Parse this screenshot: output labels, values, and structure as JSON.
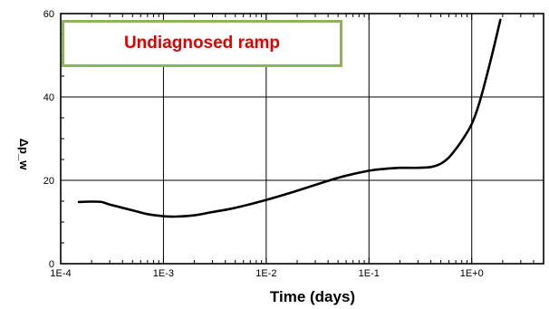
{
  "chart_data": {
    "type": "line",
    "title": "",
    "xlabel": "Time (days)",
    "ylabel": "Δp_w",
    "xscale": "log",
    "xlim": [
      0.0001,
      5
    ],
    "ylim": [
      0,
      60
    ],
    "xticks": [
      0.0001,
      0.001,
      0.01,
      0.1,
      1
    ],
    "xtick_labels": [
      "1E-4",
      "1E-3",
      "1E-2",
      "1E-1",
      "1E+0"
    ],
    "yticks": [
      0,
      20,
      40,
      60
    ],
    "ytick_labels": [
      "0",
      "20",
      "40",
      "60"
    ],
    "grid": true,
    "annotation": "Undiagnosed ramp",
    "series": [
      {
        "color": "#000000",
        "x": [
          0.00015,
          0.0002,
          0.00025,
          0.0003,
          0.0005,
          0.0007,
          0.001,
          0.0013,
          0.002,
          0.003,
          0.005,
          0.01,
          0.02,
          0.05,
          0.1,
          0.15,
          0.2,
          0.3,
          0.4,
          0.5,
          0.6,
          0.7,
          0.8,
          1.0,
          1.2,
          1.5,
          1.9
        ],
        "y": [
          14.8,
          14.9,
          14.8,
          14.2,
          12.8,
          11.9,
          11.4,
          11.3,
          11.6,
          12.4,
          13.4,
          15.3,
          17.5,
          20.6,
          22.3,
          22.8,
          23.0,
          23.0,
          23.2,
          24.0,
          25.5,
          27.5,
          29.5,
          33.5,
          39.0,
          48.0,
          58.5
        ]
      }
    ]
  }
}
